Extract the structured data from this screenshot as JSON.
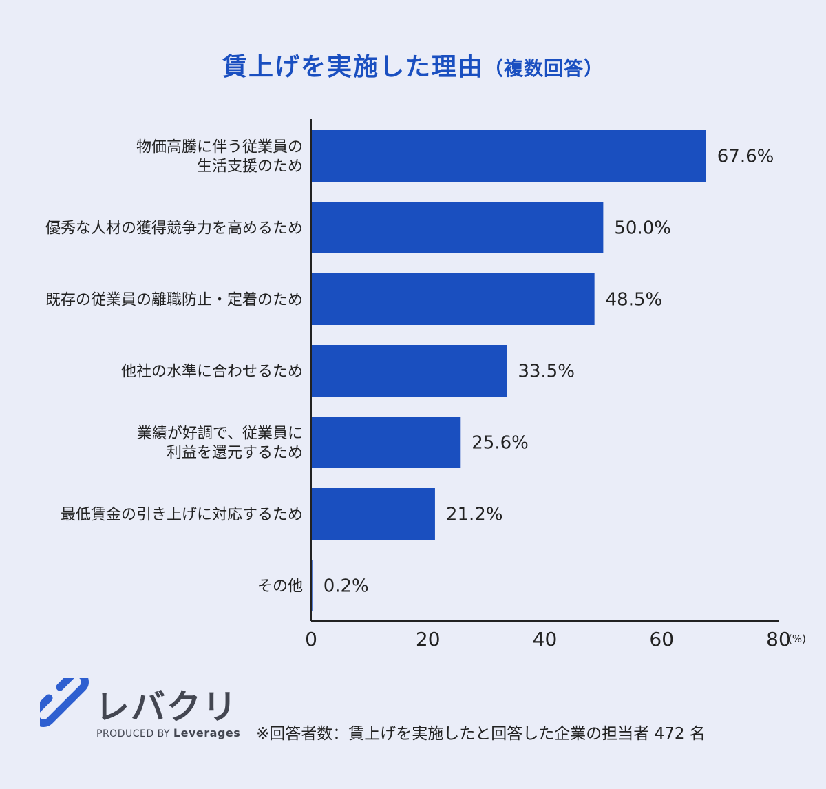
{
  "title": {
    "main": "賃上げを実施した理由",
    "sub": "（複数回答）"
  },
  "chart_data": {
    "type": "bar",
    "orientation": "horizontal",
    "categories": [
      [
        "物価高騰に伴う従業員の",
        "生活支援のため"
      ],
      [
        "優秀な人材の獲得競争力を高めるため"
      ],
      [
        "既存の従業員の離職防止・定着のため"
      ],
      [
        "他社の水準に合わせるため"
      ],
      [
        "業績が好調で、従業員に",
        "利益を還元するため"
      ],
      [
        "最低賃金の引き上げに対応するため"
      ],
      [
        "その他"
      ]
    ],
    "values": [
      67.6,
      50.0,
      48.5,
      33.5,
      25.6,
      21.2,
      0.2
    ],
    "value_labels": [
      "67.6%",
      "50.0%",
      "48.5%",
      "33.5%",
      "25.6%",
      "21.2%",
      "0.2%"
    ],
    "xlim": [
      0,
      80
    ],
    "xticks": [
      0,
      20,
      40,
      60,
      80
    ],
    "xunit": "(%)",
    "bar_color": "#1a4fbf",
    "grid": false
  },
  "logo": {
    "brand": "レバクリ",
    "produced_by": "PRODUCED BY",
    "company": "Leverages",
    "color": "#2e5fd0"
  },
  "footnote": "※回答者数：賃上げを実施したと回答した企業の担当者 472 名"
}
